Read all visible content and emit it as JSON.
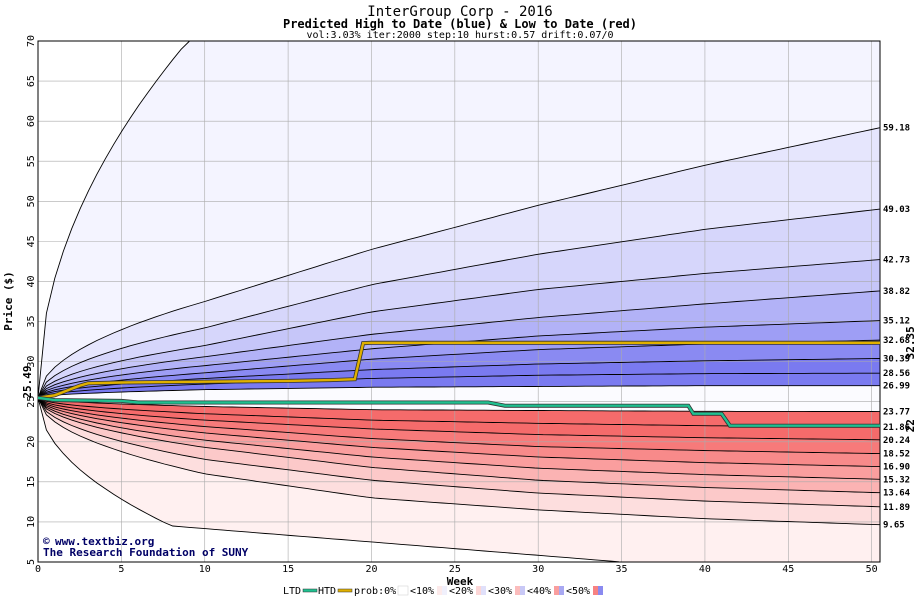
{
  "chart_data": {
    "type": "area",
    "title": "InterGroup Corp - 2016",
    "subtitle": "Predicted High to Date (blue) &  Low to Date (red)",
    "params": "vol:3.03% iter:2000 step:10 hurst:0.57 drift:0.07/0",
    "xlabel": "Week",
    "ylabel": "Price ($)",
    "xlim": [
      0,
      50.5
    ],
    "ylim": [
      5,
      70
    ],
    "xticks": [
      "0",
      "5",
      "10",
      "15",
      "20",
      "25",
      "30",
      "35",
      "40",
      "45",
      "50"
    ],
    "yticks": [
      "5",
      "10",
      "15",
      "20",
      "25",
      "30",
      "35",
      "40",
      "45",
      "50",
      "55",
      "60",
      "65",
      "70"
    ],
    "start_price": 25.49,
    "start_label": "25.49",
    "grid": true,
    "htd_quantiles": [
      {
        "label": "59.18",
        "end": 59.18,
        "w10": 37.5,
        "w20": 44.0,
        "w30": 49.5,
        "w40": 54.5
      },
      {
        "label": "49.03",
        "end": 49.03,
        "w10": 34.2,
        "w20": 39.6,
        "w30": 43.4,
        "w40": 46.5
      },
      {
        "label": "42.73",
        "end": 42.73,
        "w10": 32.0,
        "w20": 36.2,
        "w30": 39.0,
        "w40": 41.0
      },
      {
        "label": "38.82",
        "end": 38.82,
        "w10": 30.6,
        "w20": 33.4,
        "w30": 35.5,
        "w40": 37.2
      },
      {
        "label": "35.12",
        "end": 35.12,
        "w10": 29.5,
        "w20": 31.6,
        "w30": 33.2,
        "w40": 34.3
      },
      {
        "label": "32.68",
        "end": 32.68,
        "w10": 28.6,
        "w20": 30.3,
        "w30": 31.5,
        "w40": 32.2
      },
      {
        "label": "30.39",
        "end": 30.39,
        "w10": 27.9,
        "w20": 29.0,
        "w30": 29.7,
        "w40": 30.1
      },
      {
        "label": "28.56",
        "end": 28.56,
        "w10": 27.2,
        "w20": 27.9,
        "w30": 28.3,
        "w40": 28.5
      },
      {
        "label": "26.99",
        "end": 26.99,
        "w10": 26.5,
        "w20": 26.8,
        "w30": 26.9,
        "w40": 27.0
      }
    ],
    "htd_outer": {
      "w9": 70,
      "w10": 70,
      "w20": 70
    },
    "ltd_quantiles": [
      {
        "label": "23.77",
        "end": 23.77,
        "w10": 24.4,
        "w20": 24.0,
        "w30": 23.9,
        "w40": 23.8
      },
      {
        "label": "21.86",
        "end": 21.86,
        "w10": 23.5,
        "w20": 22.7,
        "w30": 22.3,
        "w40": 22.0
      },
      {
        "label": "20.24",
        "end": 20.24,
        "w10": 22.7,
        "w20": 21.6,
        "w30": 20.9,
        "w40": 20.5
      },
      {
        "label": "18.52",
        "end": 18.52,
        "w10": 21.9,
        "w20": 20.4,
        "w30": 19.4,
        "w40": 18.9
      },
      {
        "label": "16.90",
        "end": 16.9,
        "w10": 21.1,
        "w20": 19.3,
        "w30": 18.1,
        "w40": 17.4
      },
      {
        "label": "15.32",
        "end": 15.32,
        "w10": 20.2,
        "w20": 18.1,
        "w30": 16.7,
        "w40": 15.9
      },
      {
        "label": "13.64",
        "end": 13.64,
        "w10": 19.3,
        "w20": 16.8,
        "w30": 15.2,
        "w40": 14.3
      },
      {
        "label": "11.89",
        "end": 11.89,
        "w10": 17.8,
        "w20": 15.2,
        "w30": 13.6,
        "w40": 12.6
      },
      {
        "label": "9.65",
        "end": 9.65,
        "w10": 16.0,
        "w20": 13.0,
        "w30": 11.5,
        "w40": 10.4
      }
    ],
    "ltd_outer": {
      "w5": 12.0,
      "w8": 9.5,
      "w20": 7.0,
      "w30": 5.5,
      "w35": 5.0
    },
    "htd_line": {
      "name": "HTD",
      "color": "#e0b000",
      "label": "32.35",
      "points": [
        [
          0,
          25.49
        ],
        [
          1,
          25.8
        ],
        [
          1.5,
          26.2
        ],
        [
          2,
          26.6
        ],
        [
          2.5,
          27.0
        ],
        [
          3,
          27.3
        ],
        [
          5,
          27.4
        ],
        [
          10,
          27.5
        ],
        [
          15,
          27.6
        ],
        [
          17.5,
          27.7
        ],
        [
          19,
          27.8
        ],
        [
          19.5,
          32.3
        ],
        [
          20,
          32.35
        ],
        [
          25,
          32.35
        ],
        [
          30,
          32.35
        ],
        [
          35,
          32.35
        ],
        [
          40,
          32.35
        ],
        [
          50.5,
          32.35
        ]
      ]
    },
    "ltd_line": {
      "name": "LTD",
      "color": "#20c090",
      "label": "22",
      "points": [
        [
          0,
          25.49
        ],
        [
          1,
          25.2
        ],
        [
          5,
          25.1
        ],
        [
          6,
          24.9
        ],
        [
          10,
          24.9
        ],
        [
          20,
          24.9
        ],
        [
          27,
          24.9
        ],
        [
          28,
          24.5
        ],
        [
          33,
          24.5
        ],
        [
          39,
          24.5
        ],
        [
          39.3,
          23.5
        ],
        [
          41,
          23.5
        ],
        [
          41.5,
          22.0
        ],
        [
          50.5,
          22.0
        ]
      ]
    },
    "legend": {
      "ltd": "LTD",
      "htd": "HTD",
      "prob": "prob:0%",
      "bins": [
        "<10%",
        "<20%",
        "<30%",
        "<40%",
        "<50%"
      ]
    },
    "colors": {
      "htd_bands": [
        "#f4f4ff",
        "#e6e6fd",
        "#d6d6fb",
        "#c6c6f9",
        "#b2b2f7",
        "#9e9ef5",
        "#8a8af2",
        "#7a7af0"
      ],
      "ltd_bands": [
        "#fff0f0",
        "#fddede",
        "#fcc9c9",
        "#fbb3b3",
        "#fa9e9e",
        "#f88a8a",
        "#f77a7a",
        "#f56b6b"
      ],
      "grid": "#aaaaaa",
      "text": "#000000",
      "credit": "#000066"
    }
  },
  "credit": {
    "line1": "www.textbiz.org",
    "line2": "The Research Foundation of SUNY"
  }
}
